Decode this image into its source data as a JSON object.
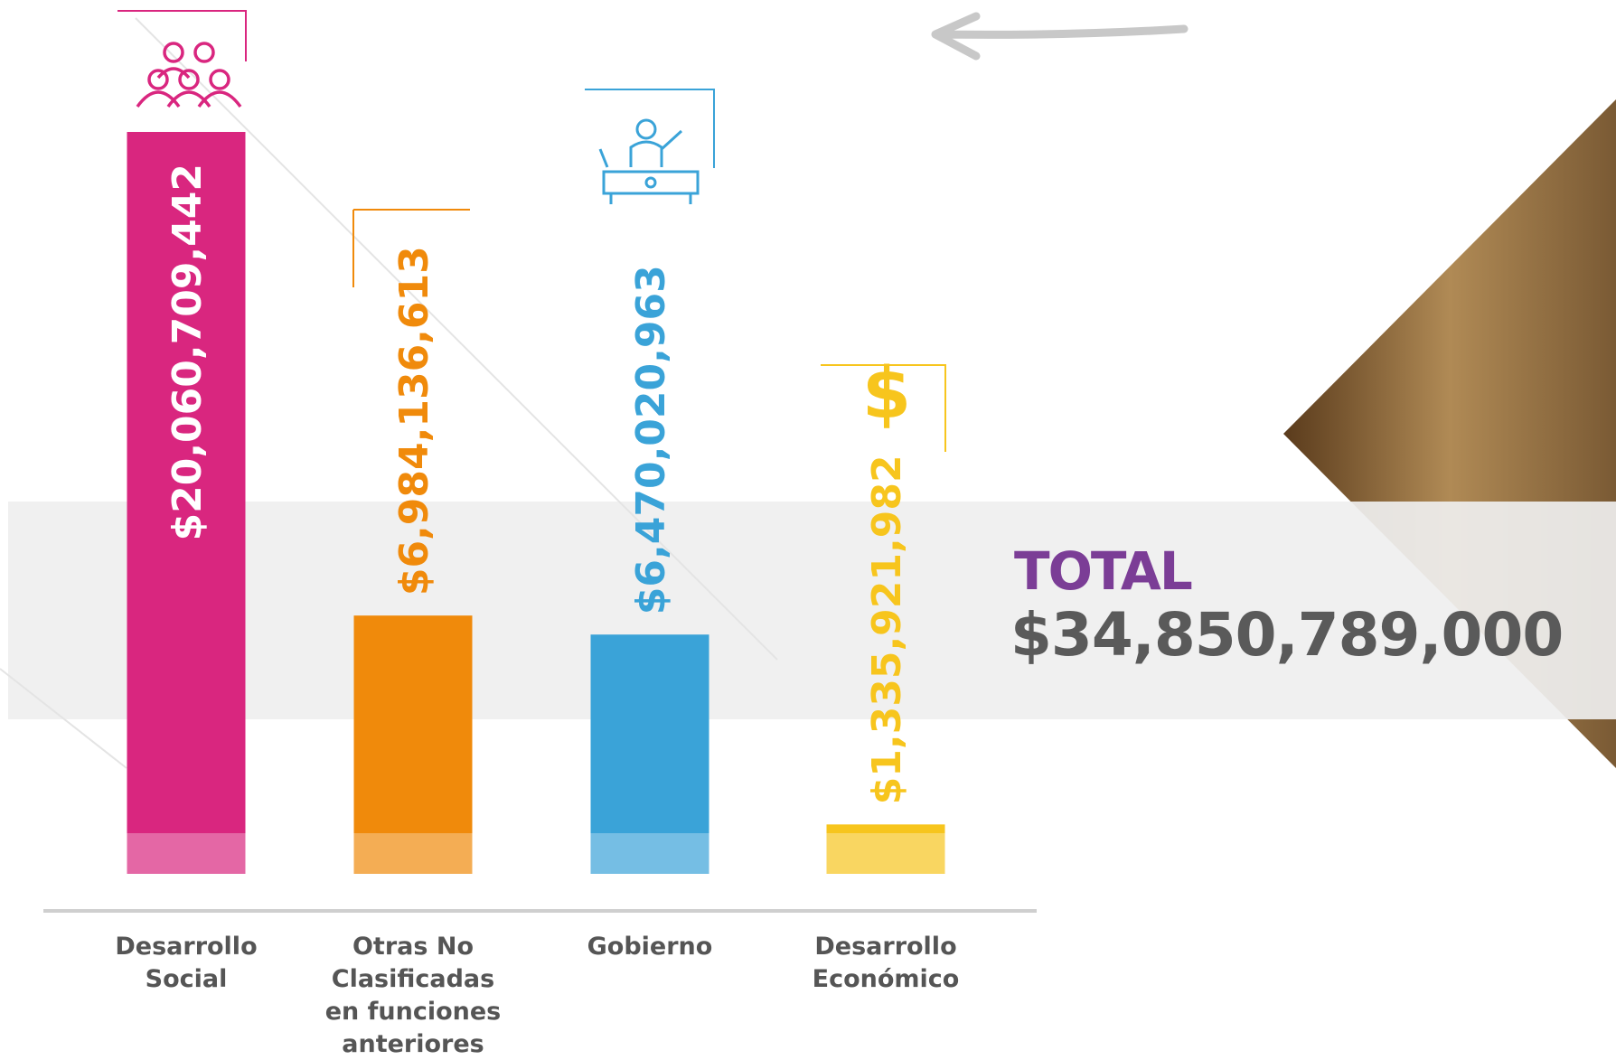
{
  "chart_data": {
    "type": "bar",
    "categories": [
      "Desarrollo Social",
      "Otras No Clasificadas en funciones anteriores",
      "Gobierno",
      "Desarrollo Económico"
    ],
    "values": [
      20060709442,
      6984136613,
      6470020963,
      1335921982
    ],
    "value_labels": [
      "$20,060,709,442",
      "$6,984,136,613",
      "$6,470,020,963",
      "$1,335,921,982"
    ],
    "colors": [
      "#d9267f",
      "#f08a0b",
      "#3aa3d8",
      "#f7c51d"
    ],
    "total_title": "TOTAL",
    "total_label": "$34,850,789,000"
  }
}
